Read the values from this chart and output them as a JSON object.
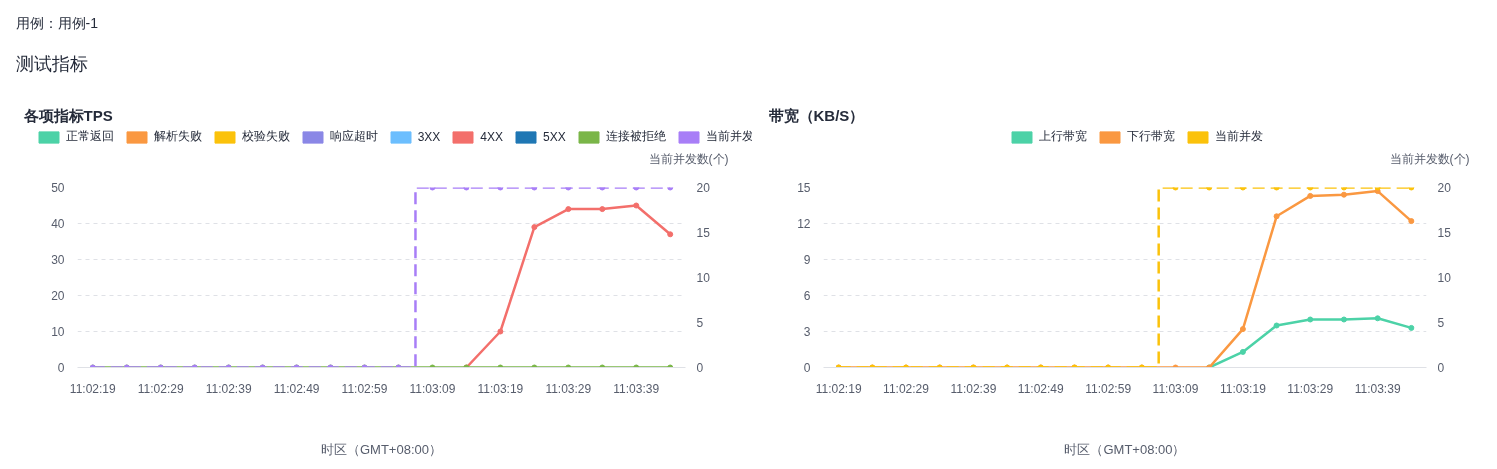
{
  "chart_data": [
    {
      "type": "line",
      "title": "各项指标TPS",
      "annotations": [
        "用例：用例-1",
        "测试指标"
      ],
      "xlabel": "时区（GMT+08:00）",
      "y2label": "当前并发数(个)",
      "categories": [
        "11:02:19",
        null,
        "11:02:29",
        null,
        "11:02:39",
        null,
        "11:02:49",
        null,
        "11:02:59",
        null,
        "11:03:09",
        null,
        "11:03:19",
        null,
        "11:03:29",
        null,
        "11:03:39",
        null
      ],
      "series": [
        {
          "name": "正常返回",
          "color": "#4cd2a7",
          "values": [
            null,
            null,
            null,
            null,
            null,
            null,
            null,
            null,
            null,
            null,
            null,
            null,
            null,
            null,
            null,
            null,
            null,
            null
          ]
        },
        {
          "name": "解析失败",
          "color": "#fa9841",
          "values": [
            null,
            null,
            null,
            null,
            null,
            null,
            null,
            null,
            null,
            null,
            null,
            null,
            null,
            null,
            null,
            null,
            null,
            null
          ]
        },
        {
          "name": "校验失败",
          "color": "#fbc20b",
          "values": [
            null,
            null,
            null,
            null,
            null,
            null,
            null,
            null,
            null,
            null,
            null,
            null,
            null,
            null,
            null,
            null,
            null,
            null
          ]
        },
        {
          "name": "响应超时",
          "color": "#8a87e6",
          "values": [
            null,
            null,
            null,
            null,
            null,
            null,
            null,
            null,
            null,
            null,
            null,
            null,
            null,
            null,
            null,
            null,
            null,
            null
          ]
        },
        {
          "name": "3XX",
          "color": "#6cbefe",
          "values": [
            null,
            null,
            null,
            null,
            null,
            null,
            null,
            null,
            null,
            null,
            null,
            null,
            null,
            null,
            null,
            null,
            null,
            null
          ]
        },
        {
          "name": "4XX",
          "color": "#f36f6b",
          "values": [
            null,
            null,
            null,
            null,
            null,
            null,
            null,
            null,
            null,
            null,
            null,
            0,
            10,
            39,
            44,
            44,
            45,
            37
          ]
        },
        {
          "name": "5XX",
          "color": "#1f77b4",
          "values": [
            null,
            null,
            null,
            null,
            null,
            null,
            null,
            null,
            null,
            null,
            null,
            null,
            null,
            null,
            null,
            null,
            null,
            null
          ]
        },
        {
          "name": "连接被拒绝",
          "color": "#7ab648",
          "values": [
            0,
            0,
            0,
            0,
            0,
            0,
            0,
            0,
            0,
            0,
            0,
            0,
            0,
            0,
            0,
            0,
            0,
            0
          ]
        },
        {
          "name": "当前并发",
          "color": "#a87ef7",
          "type": "step",
          "axis": "y2",
          "line_style": "dashed",
          "values": [
            0,
            0,
            0,
            0,
            0,
            0,
            0,
            0,
            0,
            0,
            20,
            20,
            20,
            20,
            20,
            20,
            20,
            20
          ]
        }
      ],
      "ylim": [
        0,
        50
      ],
      "yticks": [
        0,
        10,
        20,
        30,
        40,
        50
      ],
      "y2lim": [
        0,
        20
      ],
      "y2ticks": [
        0,
        5,
        10,
        15,
        20
      ],
      "grid": "y",
      "legend": "top",
      "marker": "circle",
      "line_style": "solid"
    },
    {
      "type": "line",
      "title": "带宽（KB/S）",
      "xlabel": "时区（GMT+08:00）",
      "y2label": "当前并发数(个)",
      "categories": [
        "11:02:19",
        null,
        "11:02:29",
        null,
        "11:02:39",
        null,
        "11:02:49",
        null,
        "11:02:59",
        null,
        "11:03:09",
        null,
        "11:03:19",
        null,
        "11:03:29",
        null,
        "11:03:39",
        null
      ],
      "series": [
        {
          "name": "上行带宽",
          "color": "#4cd2a7",
          "values": [
            null,
            null,
            null,
            null,
            null,
            null,
            null,
            null,
            null,
            null,
            null,
            0,
            1.3,
            3.5,
            4.0,
            4.0,
            4.1,
            3.3
          ]
        },
        {
          "name": "下行带宽",
          "color": "#fa9841",
          "values": [
            0,
            0,
            0,
            0,
            0,
            0,
            0,
            0,
            0,
            0,
            0,
            0,
            3.2,
            12.6,
            14.3,
            14.4,
            14.7,
            12.2
          ]
        },
        {
          "name": "当前并发",
          "color": "#fbc20b",
          "type": "step",
          "axis": "y2",
          "line_style": "dashed",
          "values": [
            0,
            0,
            0,
            0,
            0,
            0,
            0,
            0,
            0,
            0,
            20,
            20,
            20,
            20,
            20,
            20,
            20,
            20
          ]
        }
      ],
      "ylim": [
        0,
        15
      ],
      "yticks": [
        0,
        3,
        6,
        9,
        12,
        15
      ],
      "y2lim": [
        0,
        20
      ],
      "y2ticks": [
        0,
        5,
        10,
        15,
        20
      ],
      "grid": "y",
      "legend": "top",
      "marker": "circle",
      "line_style": "solid"
    }
  ]
}
